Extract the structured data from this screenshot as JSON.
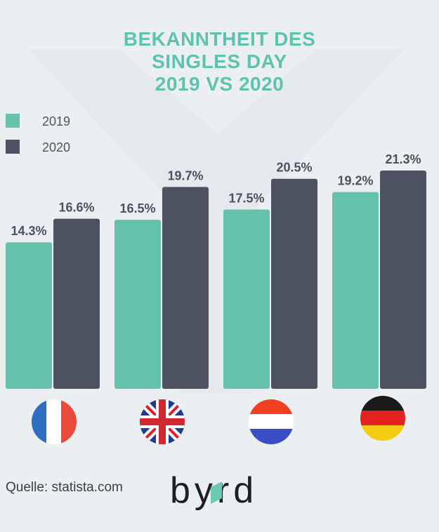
{
  "title_lines": [
    "BEKANNTHEIT DES",
    "SINGLES DAY",
    "2019 VS 2020"
  ],
  "legend": [
    {
      "label": "2019",
      "color": "#65c1ac"
    },
    {
      "label": "2020",
      "color": "#4c5260"
    }
  ],
  "chart_data": {
    "type": "bar",
    "title": "BEKANNTHEIT DES SINGLES DAY 2019 VS 2020",
    "categories": [
      "france-flag",
      "uk-flag",
      "netherlands-flag",
      "germany-flag"
    ],
    "series": [
      {
        "name": "2019",
        "values": [
          14.3,
          16.5,
          17.5,
          19.2
        ],
        "labels": [
          "14.3%",
          "16.5%",
          "17.5%",
          "19.2%"
        ]
      },
      {
        "name": "2020",
        "values": [
          16.6,
          19.7,
          20.5,
          21.3
        ],
        "labels": [
          "16.6%",
          "19.7%",
          "20.5%",
          "21.3%"
        ]
      }
    ],
    "colors": {
      "2019": "#65c1ac",
      "2020": "#4c5260",
      "label": "#4a5260"
    }
  },
  "source": "Quelle: statista.com",
  "logo_text": "byrd",
  "logo_color": "#1e1f22",
  "logo_accent": "#6cc9b4"
}
